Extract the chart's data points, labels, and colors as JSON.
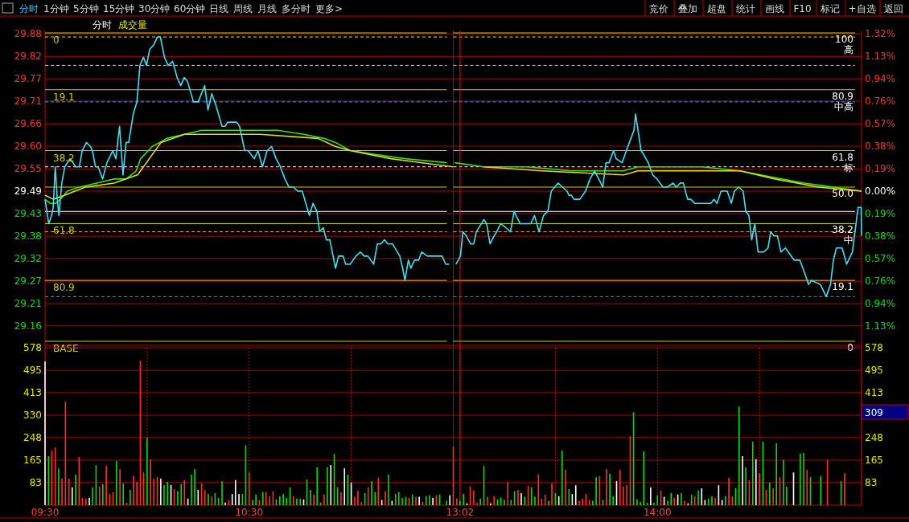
{
  "chart_data": [
    {
      "type": "other",
      "categories": [
        "分时",
        "1分钟",
        "5分钟",
        "15分钟",
        "30分钟",
        "60分钟",
        "日线",
        "周线",
        "月线",
        "多分时",
        "更多>"
      ],
      "annotations": [
        "竞价",
        "叠加",
        "超盘",
        "统计",
        "画线",
        "F10",
        "标记",
        "+自选",
        "返回"
      ]
    },
    {
      "type": "line",
      "title": "分时",
      "subtitle": "成交量",
      "xlim": [
        9.5,
        11.5
      ],
      "ylim": [
        29.11,
        29.88
      ],
      "tick_labels": "y",
      "grid": "y",
      "yticks": [
        {
          "value": 29.878,
          "label": "29.88"
        },
        {
          "value": 29.822,
          "label": "29.82"
        },
        {
          "value": 29.767,
          "label": "29.77"
        },
        {
          "value": 29.712,
          "label": "29.71"
        },
        {
          "value": 29.656,
          "label": "29.66"
        },
        {
          "value": 29.601,
          "label": "29.60"
        },
        {
          "value": 29.545,
          "label": "29.55"
        },
        {
          "value": 29.49,
          "label": "29.49"
        },
        {
          "value": 29.435,
          "label": "29.43"
        },
        {
          "value": 29.379,
          "label": "29.38"
        },
        {
          "value": 29.324,
          "label": "29.32"
        },
        {
          "value": 29.268,
          "label": "29.27"
        },
        {
          "value": 29.213,
          "label": "29.21"
        },
        {
          "value": 29.158,
          "label": "29.16"
        }
      ],
      "annotations": [
        "0",
        "19.1",
        "38.2",
        "61.8",
        "80.9",
        "BASE"
      ],
      "ref_lines": [
        {
          "axis": "y",
          "value": 29.88,
          "color": "#d0d000"
        },
        {
          "axis": "y",
          "value": 29.74,
          "color": "#d0d000"
        },
        {
          "axis": "y",
          "value": 29.59,
          "color": "#d0d000"
        },
        {
          "axis": "y",
          "value": 29.5,
          "color": "#d0d000"
        },
        {
          "axis": "y",
          "value": 29.41,
          "color": "#d0d000"
        },
        {
          "axis": "y",
          "value": 29.27,
          "color": "#d0d000"
        },
        {
          "axis": "y",
          "value": 29.12,
          "color": "#d0d000"
        },
        {
          "axis": "y",
          "value": 29.87,
          "color": "#e0e000",
          "line_style": "dashed"
        },
        {
          "axis": "y",
          "value": 29.8,
          "color": "#e0e000",
          "line_style": "dashed"
        },
        {
          "axis": "y",
          "value": 29.71,
          "color": "#3aa0ff",
          "line_style": "dashed"
        },
        {
          "axis": "y",
          "value": 29.55,
          "color": "#ffffff",
          "line_style": "dashed"
        },
        {
          "axis": "y",
          "value": 29.39,
          "color": "#ff9900",
          "line_style": "dashed"
        },
        {
          "axis": "y",
          "value": 29.23,
          "color": "#00d000",
          "line_style": "dashed"
        },
        {
          "axis": "y",
          "value": 29.44,
          "color": "#ffffff"
        }
      ],
      "series": [
        {
          "color": "#30e030",
          "x": [
            9.5,
            9.525,
            9.553,
            9.575,
            9.61,
            9.668,
            9.753,
            9.838,
            9.897,
            9.947,
            9.968,
            10.025,
            10.097,
            10.182,
            10.267,
            10.353,
            10.453,
            10.553,
            10.638,
            10.767,
            10.867,
            10.923,
            10.995,
            11.123,
            11.267,
            11.467
          ],
          "values": [
            29.47,
            29.46,
            29.46,
            29.47,
            29.49,
            29.5,
            29.51,
            29.52,
            29.52,
            29.54,
            29.57,
            29.6,
            29.62,
            29.63,
            29.64,
            29.64,
            29.64,
            29.64,
            29.64,
            29.63,
            29.62,
            29.61,
            29.59,
            29.58,
            29.57,
            29.56
          ]
        },
        {
          "color": "#e0e000",
          "x": [
            9.5,
            9.54,
            9.597,
            9.697,
            9.838,
            9.953,
            9.982,
            10.068,
            10.182,
            10.353,
            10.553,
            10.838,
            10.923,
            10.995,
            11.195,
            11.498
          ],
          "values": [
            29.48,
            29.47,
            29.48,
            29.5,
            29.51,
            29.53,
            29.55,
            29.61,
            29.63,
            29.63,
            29.63,
            29.62,
            29.6,
            29.59,
            29.57,
            29.55
          ]
        },
        {
          "color": "#40e0f0",
          "x": [
            9.5,
            9.518,
            9.532,
            9.54,
            9.55,
            9.56,
            9.568,
            9.582,
            9.597,
            9.622,
            9.637,
            9.65,
            9.668,
            9.682,
            9.703,
            9.722,
            9.732,
            9.747,
            9.76,
            9.782,
            9.803,
            9.832,
            9.847,
            9.865,
            9.882,
            9.897,
            9.91,
            9.932,
            9.95,
            9.965,
            9.982,
            9.997,
            10.013,
            10.032,
            10.05,
            10.065,
            10.085,
            10.103,
            10.125,
            10.147,
            10.165,
            10.182,
            10.198,
            10.227,
            10.25,
            10.282,
            10.298,
            10.317,
            10.338,
            10.367,
            10.382,
            10.395,
            10.438,
            10.453,
            10.478,
            10.495,
            10.525,
            10.543,
            10.565,
            10.588,
            10.61,
            10.632,
            10.653,
            10.675,
            10.695,
            10.717,
            10.738,
            10.76,
            10.795,
            10.813,
            10.832,
            10.845,
            10.863,
            10.878,
            10.895,
            10.923,
            10.938,
            10.96,
            10.973,
            10.995,
            11.023,
            11.045,
            11.063,
            11.082,
            11.11,
            11.128,
            11.145,
            11.163,
            11.18,
            11.202,
            11.238,
            11.252,
            11.263,
            11.28,
            11.292,
            11.31,
            11.33,
            11.345,
            11.373,
            11.395,
            11.41,
            11.423,
            11.445,
            11.463,
            11.48
          ],
          "values": [
            29.47,
            29.41,
            29.43,
            29.45,
            29.55,
            29.47,
            29.43,
            29.51,
            29.55,
            29.57,
            29.56,
            29.55,
            29.55,
            29.59,
            29.61,
            29.6,
            29.59,
            29.55,
            29.55,
            29.52,
            29.56,
            29.59,
            29.57,
            29.65,
            29.53,
            29.61,
            29.61,
            29.68,
            29.71,
            29.8,
            29.82,
            29.8,
            29.84,
            29.85,
            29.87,
            29.87,
            29.82,
            29.8,
            29.81,
            29.77,
            29.75,
            29.77,
            29.76,
            29.71,
            29.71,
            29.75,
            29.69,
            29.73,
            29.7,
            29.65,
            29.65,
            29.66,
            29.66,
            29.65,
            29.59,
            29.59,
            29.57,
            29.59,
            29.55,
            29.59,
            29.6,
            29.57,
            29.55,
            29.52,
            29.5,
            29.5,
            29.49,
            29.49,
            29.43,
            29.46,
            29.44,
            29.39,
            29.4,
            29.37,
            29.37,
            29.3,
            29.33,
            29.33,
            29.31,
            29.31,
            29.33,
            29.34,
            29.33,
            29.33,
            29.31,
            29.36,
            29.36,
            29.37,
            29.36,
            29.36,
            29.33,
            29.3,
            29.27,
            29.32,
            29.3,
            29.32,
            29.32,
            29.34,
            29.33,
            29.33,
            29.33,
            29.33,
            29.33,
            29.31,
            29.31
          ]
        }
      ]
    },
    {
      "type": "line",
      "xlim": [
        13,
        15
      ],
      "ylim": [
        29.11,
        29.88
      ],
      "y2lim": [
        -1.296,
        1.33
      ],
      "tick_labels": false,
      "grid": "y",
      "yticks": [
        {
          "value": 29.878,
          "label": null
        },
        {
          "value": 29.822,
          "label": null
        },
        {
          "value": 29.767,
          "label": null
        },
        {
          "value": 29.712,
          "label": null
        },
        {
          "value": 29.656,
          "label": null
        },
        {
          "value": 29.601,
          "label": null
        },
        {
          "value": 29.545,
          "label": null
        },
        {
          "value": 29.49,
          "label": null
        },
        {
          "value": 29.435,
          "label": null
        },
        {
          "value": 29.379,
          "label": null
        },
        {
          "value": 29.324,
          "label": null
        },
        {
          "value": 29.268,
          "label": null
        },
        {
          "value": 29.213,
          "label": null
        },
        {
          "value": 29.158,
          "label": null
        }
      ],
      "y2ticks": [
        {
          "value": 1.322,
          "label": "1.32%"
        },
        {
          "value": 1.133,
          "label": "1.13%"
        },
        {
          "value": 0.944,
          "label": "0.94%"
        },
        {
          "value": 0.756,
          "label": "0.76%"
        },
        {
          "value": 0.567,
          "label": "0.57%"
        },
        {
          "value": 0.378,
          "label": "0.38%"
        },
        {
          "value": 0.189,
          "label": "0.19%"
        },
        {
          "value": 0,
          "label": "0.00%"
        },
        {
          "value": -0.189,
          "label": "0.19%"
        },
        {
          "value": -0.378,
          "label": "0.38%"
        },
        {
          "value": -0.567,
          "label": "0.57%"
        },
        {
          "value": -0.756,
          "label": "0.76%"
        },
        {
          "value": -0.944,
          "label": "0.94%"
        },
        {
          "value": -1.133,
          "label": "1.13%"
        }
      ],
      "ref_lines": [
        {
          "axis": "y",
          "value": 29.88,
          "color": "#d0d000"
        },
        {
          "axis": "y",
          "value": 29.74,
          "color": "#d0d000"
        },
        {
          "axis": "y",
          "value": 29.59,
          "color": "#d0d000"
        },
        {
          "axis": "y",
          "value": 29.5,
          "color": "#d0d000"
        },
        {
          "axis": "y",
          "value": 29.41,
          "color": "#d0d000"
        },
        {
          "axis": "y",
          "value": 29.27,
          "color": "#d0d000"
        },
        {
          "axis": "y",
          "value": 29.12,
          "color": "#d0d000"
        },
        {
          "axis": "y",
          "value": 29.87,
          "color": "#e0e000",
          "line_style": "dashed"
        },
        {
          "axis": "y",
          "value": 29.8,
          "color": "#e0e000",
          "line_style": "dashed"
        },
        {
          "axis": "y",
          "value": 29.71,
          "color": "#3aa0ff",
          "line_style": "dashed"
        },
        {
          "axis": "y",
          "value": 29.55,
          "color": "#ffffff",
          "line_style": "dashed"
        },
        {
          "axis": "y",
          "value": 29.39,
          "color": "#ff9900",
          "line_style": "dashed"
        },
        {
          "axis": "y",
          "value": 29.23,
          "color": "#00d000",
          "line_style": "dashed"
        },
        {
          "axis": "y",
          "value": 29.44,
          "color": "#ffffff"
        },
        {
          "axis": "x",
          "value": 13.033,
          "color": "#ff0000"
        }
      ],
      "annotations": [
        "100",
        "高",
        "80.9",
        "中高",
        "61.8",
        "标",
        "50.0",
        "38.2",
        "中",
        "19.1",
        "0"
      ],
      "series": [
        {
          "color": "#30e030",
          "x": [
            13.007,
            13.15,
            13.363,
            13.577,
            13.835,
            13.905,
            14.22,
            14.405,
            14.505,
            14.72,
            14.862,
            15
          ],
          "values": [
            29.56,
            29.55,
            29.55,
            29.54,
            29.54,
            29.55,
            29.55,
            29.54,
            29.53,
            29.51,
            29.5,
            29.49
          ]
        },
        {
          "color": "#e0e000",
          "x": [
            13.15,
            13.435,
            13.835,
            13.905,
            14.22,
            14.405,
            14.577,
            14.79,
            15
          ],
          "values": [
            29.55,
            29.54,
            29.53,
            29.54,
            29.54,
            29.54,
            29.52,
            29.5,
            29.49
          ]
        },
        {
          "color": "#40e0f0",
          "x": [
            13.013,
            13.035,
            13.047,
            13.063,
            13.085,
            13.1,
            13.113,
            13.15,
            13.163,
            13.18,
            13.2,
            13.213,
            13.232,
            13.257,
            13.28,
            13.298,
            13.327,
            13.357,
            13.38,
            13.398,
            13.42,
            13.442,
            13.463,
            13.48,
            13.513,
            13.535,
            13.557,
            13.567,
            13.577,
            13.592,
            13.62,
            13.648,
            13.67,
            13.692,
            13.713,
            13.732,
            13.748,
            13.763,
            13.785,
            13.798,
            13.827,
            13.848,
            13.87,
            13.885,
            13.893,
            13.92,
            13.933,
            13.955,
            13.977,
            13.998,
            14.027,
            14.048,
            14.077,
            14.092,
            14.113,
            14.127,
            14.148,
            14.163,
            14.183,
            14.198,
            14.22,
            14.233,
            14.262,
            14.277,
            14.292,
            14.312,
            14.342,
            14.362,
            14.377,
            14.398,
            14.42,
            14.433,
            14.448,
            14.462,
            14.477,
            14.493,
            14.52,
            14.542,
            14.555,
            14.57,
            14.588,
            14.605,
            14.627,
            14.67,
            14.698,
            14.72,
            14.74,
            14.755,
            14.798,
            14.827,
            14.848,
            14.862,
            14.877,
            14.905,
            14.927,
            14.955,
            14.968,
            14.983,
            14.998,
            15
          ],
          "values": [
            29.31,
            29.33,
            29.39,
            29.38,
            29.36,
            29.36,
            29.39,
            29.42,
            29.41,
            29.36,
            29.38,
            29.39,
            29.41,
            29.4,
            29.39,
            29.44,
            29.41,
            29.41,
            29.41,
            29.43,
            29.39,
            29.43,
            29.44,
            29.49,
            29.51,
            29.5,
            29.49,
            29.48,
            29.48,
            29.47,
            29.47,
            29.49,
            29.52,
            29.54,
            29.52,
            29.5,
            29.56,
            29.56,
            29.59,
            29.57,
            29.56,
            29.59,
            29.62,
            29.64,
            29.68,
            29.59,
            29.58,
            29.56,
            29.53,
            29.52,
            29.5,
            29.5,
            29.51,
            29.5,
            29.51,
            29.51,
            29.47,
            29.47,
            29.46,
            29.46,
            29.46,
            29.46,
            29.46,
            29.47,
            29.46,
            29.49,
            29.49,
            29.46,
            29.49,
            29.5,
            29.49,
            29.44,
            29.43,
            29.37,
            29.41,
            29.34,
            29.34,
            29.35,
            29.39,
            29.38,
            29.38,
            29.34,
            29.35,
            29.32,
            29.32,
            29.29,
            29.26,
            29.27,
            29.26,
            29.23,
            29.26,
            29.32,
            29.35,
            29.35,
            29.31,
            29.34,
            29.39,
            29.45,
            29.45,
            29.38
          ]
        }
      ]
    },
    {
      "type": "bar",
      "xlim": [
        9.5,
        11.5
      ],
      "ylim": [
        0,
        578
      ],
      "grid": true,
      "xticks": [
        {
          "value": 9.5,
          "label": "09:30"
        },
        {
          "value": 10,
          "label": null
        },
        {
          "value": 10.5,
          "label": "10:30"
        },
        {
          "value": 11,
          "label": null
        }
      ],
      "yticks": [
        578,
        495,
        413,
        330,
        248,
        165,
        83
      ],
      "x": [
        9.5,
        9.517,
        9.533,
        9.55,
        9.567,
        9.583,
        9.6,
        9.617,
        9.633,
        9.65,
        9.667,
        9.683,
        9.7,
        9.717,
        9.733,
        9.75,
        9.767,
        9.783,
        9.8,
        9.817,
        9.833,
        9.85,
        9.867,
        9.883,
        9.9,
        9.917,
        9.933,
        9.95,
        9.967,
        9.983,
        10,
        10.017,
        10.033,
        10.05,
        10.067,
        10.083,
        10.1,
        10.117,
        10.133,
        10.15,
        10.167,
        10.183,
        10.2,
        10.217,
        10.233,
        10.25,
        10.267,
        10.283,
        10.3,
        10.317,
        10.333,
        10.35,
        10.367,
        10.383,
        10.4,
        10.417,
        10.433,
        10.45,
        10.467,
        10.483,
        10.5,
        10.517,
        10.533,
        10.55,
        10.567,
        10.583,
        10.6,
        10.617,
        10.633,
        10.65,
        10.667,
        10.683,
        10.7,
        10.717,
        10.733,
        10.75,
        10.767,
        10.783,
        10.8,
        10.817,
        10.833,
        10.85,
        10.867,
        10.883,
        10.9,
        10.917,
        10.933,
        10.95,
        10.967,
        10.983,
        11,
        11.017,
        11.033,
        11.05,
        11.067,
        11.083,
        11.1,
        11.117,
        11.133,
        11.15,
        11.167,
        11.183,
        11.2,
        11.217,
        11.233,
        11.25,
        11.267,
        11.283,
        11.3,
        11.317,
        11.333,
        11.35,
        11.367,
        11.383,
        11.4,
        11.417,
        11.433,
        11.45,
        11.467,
        11.483
      ],
      "values": [
        527,
        180,
        200,
        212,
        135,
        98,
        380,
        98,
        65,
        112,
        177,
        27,
        24,
        27,
        65,
        147,
        68,
        77,
        145,
        41,
        48,
        162,
        132,
        80,
        9,
        56,
        107,
        85,
        530,
        120,
        247,
        168,
        97,
        103,
        97,
        74,
        86,
        74,
        59,
        51,
        77,
        92,
        24,
        112,
        132,
        56,
        80,
        56,
        41,
        33,
        44,
        27,
        88,
        9,
        19,
        41,
        92,
        41,
        41,
        220,
        120,
        19,
        39,
        19,
        48,
        48,
        33,
        51,
        21,
        33,
        41,
        27,
        65,
        33,
        24,
        24,
        21,
        94,
        56,
        39,
        139,
        9,
        39,
        139,
        147,
        188,
        65,
        48,
        135,
        112,
        83,
        31,
        54,
        12,
        44,
        65,
        88,
        48,
        100,
        19,
        51,
        112,
        16,
        41,
        48,
        27,
        31,
        27,
        39,
        31,
        31,
        12,
        33,
        36,
        27,
        36,
        39,
        null,
        16,
        36
      ],
      "colors": [
        "#ffffff",
        "#00e000",
        "#ff3030",
        "#ff3030",
        "#00e000",
        "#ff3030",
        "#ff3030",
        "#ff3030",
        "#ffffff",
        "#00e000",
        "#ff3030",
        "#ff3030",
        "#ff3030",
        "#ffffff",
        "#00e000",
        "#00e000",
        "#ff3030",
        "#00e000",
        "#ff3030",
        "#ff3030",
        "#ff3030",
        "#00e000",
        "#ff3030",
        "#00e000",
        "#ff3030",
        "#00e000",
        "#ff3030",
        "#ff3030",
        "#ff3030",
        "#ff3030",
        "#00e000",
        "#ff3030",
        "#ff3030",
        "#ff3030",
        "#ffffff",
        "#00e000",
        "#00e000",
        "#ffffff",
        "#ff3030",
        "#00e000",
        "#00e000",
        "#ff3030",
        "#ffffff",
        "#00e000",
        "#00e000",
        "#ffffff",
        "#ff3030",
        "#ff3030",
        "#00e000",
        "#ff3030",
        "#00e000",
        "#00e000",
        "#00e000",
        "#ffffff",
        "#ff3030",
        "#ffffff",
        "#ffffff",
        "#ffffff",
        "#00e000",
        "#00e000",
        "#ff3030",
        "#00e000",
        "#00e000",
        "#ff3030",
        "#00e000",
        "#ff3030",
        "#ff3030",
        "#ff3030",
        "#00e000",
        "#00e000",
        "#00e000",
        "#00e000",
        "#00e000",
        "#ff3030",
        "#00e000",
        "#00e000",
        "#ffffff",
        "#00e000",
        "#00e000",
        "#ff3030",
        "#00e000",
        "#00e000",
        "#ff3030",
        "#00e000",
        "#ffffff",
        "#00e000",
        "#00e000",
        "#ff3030",
        "#ffffff",
        "#00e000",
        "#ffffff",
        "#ff3030",
        "#ff3030",
        "#ff3030",
        "#00e000",
        "#ff3030",
        "#00e000",
        "#00e000",
        "#ff3030",
        "#ffffff",
        "#ff3030",
        "#00e000",
        "#ffffff",
        "#00e000",
        "#00e000",
        "#00e000",
        "#00e000",
        "#ff3030",
        "#00e000",
        "#ff3030",
        "#ffffff",
        "#ff3030",
        "#00e000",
        "#00e000",
        "#ffffff",
        "#ff3030",
        "#00e000",
        null,
        "#00e000",
        "#ffffff"
      ]
    },
    {
      "type": "bar",
      "xlim": [
        13,
        15
      ],
      "ylim": [
        0,
        578
      ],
      "grid": true,
      "xticks": [
        {
          "value": 13.033,
          "label": "13:02"
        },
        {
          "value": 13.5,
          "label": null
        },
        {
          "value": 14,
          "label": "14:00"
        },
        {
          "value": 14.5,
          "label": null
        },
        {
          "value": 15,
          "label": null
        }
      ],
      "yticks": [
        578,
        495,
        413,
        {
          "value": 330,
          "label": null
        },
        248,
        165,
        83
      ],
      "ref_lines": [
        {
          "axis": "x",
          "value": 13.033,
          "color": "#ff0000"
        }
      ],
      "annotations": [
        "309"
      ],
      "x": [
        13,
        13.017,
        13.033,
        13.05,
        13.067,
        13.083,
        13.1,
        13.117,
        13.133,
        13.15,
        13.167,
        13.183,
        13.2,
        13.217,
        13.233,
        13.25,
        13.267,
        13.283,
        13.3,
        13.317,
        13.333,
        13.35,
        13.367,
        13.383,
        13.4,
        13.417,
        13.433,
        13.45,
        13.467,
        13.483,
        13.5,
        13.517,
        13.533,
        13.55,
        13.567,
        13.583,
        13.6,
        13.617,
        13.633,
        13.65,
        13.667,
        13.683,
        13.7,
        13.717,
        13.733,
        13.75,
        13.767,
        13.783,
        13.8,
        13.817,
        13.833,
        13.85,
        13.867,
        13.883,
        13.9,
        13.917,
        13.933,
        13.95,
        13.967,
        13.983,
        14,
        14.017,
        14.033,
        14.05,
        14.067,
        14.083,
        14.1,
        14.117,
        14.133,
        14.15,
        14.167,
        14.183,
        14.2,
        14.217,
        14.233,
        14.25,
        14.267,
        14.283,
        14.3,
        14.317,
        14.333,
        14.35,
        14.367,
        14.383,
        14.4,
        14.417,
        14.433,
        14.45,
        14.467,
        14.483,
        14.5,
        14.517,
        14.533,
        14.55,
        14.567,
        14.583,
        14.6,
        14.617,
        14.633,
        14.65,
        14.667,
        14.683,
        14.7,
        14.717,
        14.733,
        14.75,
        14.767,
        14.783,
        14.8,
        14.817,
        14.833,
        14.85,
        14.867,
        14.883,
        14.9,
        14.917
      ],
      "values": [
        215,
        24,
        16,
        41,
        7,
        68,
        54,
        9,
        24,
        144,
        31,
        7,
        33,
        21,
        28,
        19,
        85,
        19,
        51,
        56,
        44,
        31,
        71,
        65,
        31,
        112,
        24,
        39,
        16,
        80,
        44,
        33,
        200,
        130,
        59,
        41,
        73,
        16,
        24,
        41,
        19,
        16,
        103,
        107,
        19,
        132,
        115,
        33,
        88,
        130,
        68,
        74,
        253,
        341,
        21,
        12,
        198,
        9,
        65,
        9,
        36,
        54,
        31,
        16,
        44,
        27,
        39,
        44,
        16,
        7,
        39,
        33,
        54,
        62,
        19,
        24,
        33,
        27,
        73,
        19,
        33,
        100,
        33,
        62,
        362,
        180,
        139,
        92,
        233,
        169,
        118,
        233,
        56,
        83,
        62,
        227,
        103,
        166,
        68,
        null,
        120,
        null,
        189,
        192,
        130,
        103,
        null,
        null,
        106,
        null,
        166,
        null,
        null,
        null,
        88,
        118
      ],
      "colors": [
        "#ff3030",
        "#ff3030",
        "#00e000",
        "#00e000",
        "#ffffff",
        "#ff3030",
        "#ff3030",
        "#ff3030",
        "#00e000",
        "#00e000",
        "#ff3030",
        "#ffffff",
        "#ff3030",
        "#00e000",
        "#00e000",
        "#00e000",
        "#ff3030",
        "#00e000",
        "#00e000",
        "#ff3030",
        "#ffffff",
        "#00e000",
        "#ff3030",
        "#00e000",
        "#00e000",
        "#ff3030",
        "#ff3030",
        "#ff3030",
        "#00e000",
        "#ff3030",
        "#00e000",
        "#ffffff",
        "#00e000",
        "#ff3030",
        "#00e000",
        "#ffffff",
        "#ffffff",
        "#ff3030",
        "#ff3030",
        "#ff3030",
        "#ff3030",
        "#00e000",
        "#00e000",
        "#ff3030",
        "#00e000",
        "#ff3030",
        "#00e000",
        "#00e000",
        "#ffffff",
        "#ff3030",
        "#ff3030",
        "#ff3030",
        "#ff3030",
        "#00e000",
        "#00e000",
        "#00e000",
        "#00e000",
        "#00e000",
        "#ffffff",
        "#00e000",
        "#00e000",
        "#ff3030",
        "#ffffff",
        "#00e000",
        "#00e000",
        "#ff3030",
        "#ffffff",
        "#00e000",
        "#ff3030",
        "#ffffff",
        "#00e000",
        "#ff3030",
        "#00e000",
        "#ffffff",
        "#ffffff",
        "#00e000",
        "#00e000",
        "#ff3030",
        "#ffffff",
        "#ffffff",
        "#00e000",
        "#ff3030",
        "#ff3030",
        "#00e000",
        "#00e000",
        "#ffffff",
        "#00e000",
        "#ff3030",
        "#00e000",
        "#ffffff",
        "#ff3030",
        "#00e000",
        "#ff3030",
        "#00e000",
        "#ff3030",
        "#00e000",
        "#ff3030",
        "#00e000",
        "#00e000",
        null,
        "#ffffff",
        null,
        "#00e000",
        "#00e000",
        "#ff3030",
        "#00e000",
        null,
        null,
        "#00e000",
        null,
        "#ff3030",
        null,
        null,
        null,
        "#00e000",
        "#ff3030"
      ]
    }
  ]
}
